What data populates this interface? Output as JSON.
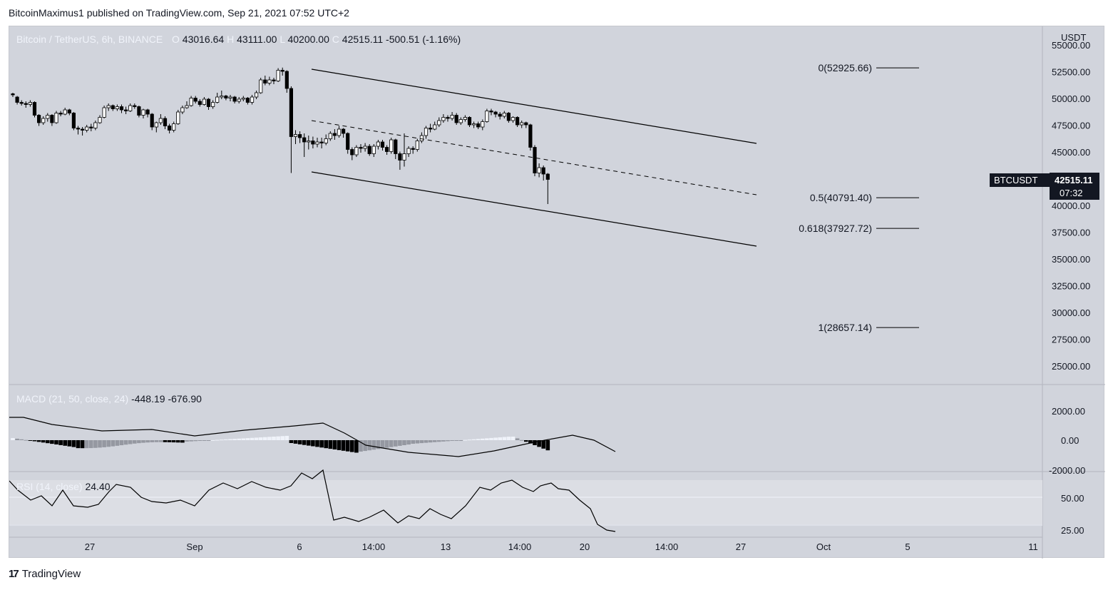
{
  "header": {
    "publish_text": "BitcoinMaximus1 published on TradingView.com, Sep 21, 2021 07:52 UTC+2"
  },
  "footer": {
    "brand": "TradingView",
    "logo_glyph": "17"
  },
  "legend": {
    "symbol": "Bitcoin / TetherUS, 6h, BINANCE",
    "open_prefix": "O",
    "open": "43016.64",
    "high_prefix": "H",
    "high": "43111.00",
    "low_prefix": "L",
    "low": "40200.00",
    "close_prefix": "C",
    "close": "42515.11",
    "change": "-500.51 (-1.16%)"
  },
  "price_axis": {
    "currency": "USDT",
    "ticks": [
      "55000.00",
      "52500.00",
      "50000.00",
      "47500.00",
      "45000.00",
      "40000.00",
      "37500.00",
      "35000.00",
      "32500.00",
      "30000.00",
      "27500.00",
      "25000.00"
    ],
    "last_symbol": "BTCUSDT",
    "last_price": "42515.11",
    "countdown": "07:32"
  },
  "time_axis": {
    "ticks": [
      "27",
      "Sep",
      "6",
      "14:00",
      "13",
      "14:00",
      "20",
      "14:00",
      "27",
      "Oct",
      "5",
      "11"
    ]
  },
  "fib_levels": [
    {
      "label": "0(52925.66)",
      "value": 52925.66
    },
    {
      "label": "0.5(40791.40)",
      "value": 40791.4
    },
    {
      "label": "0.618(37927.72)",
      "value": 37927.72
    },
    {
      "label": "1(28657.14)",
      "value": 28657.14
    }
  ],
  "macd": {
    "label": "MACD (21, 50, close, 24)",
    "value1": "-448.19",
    "value2": "-676.90",
    "ticks": [
      "2000.00",
      "0.00",
      "-2000.00"
    ]
  },
  "rsi": {
    "label": "RSI (14, close)",
    "value": "24.40",
    "ticks": [
      "50.00",
      "25.00"
    ]
  },
  "colors": {
    "background": "#d1d4dc",
    "up": "#ffffff",
    "down": "#000000",
    "line": "#000000",
    "label_bg": "#131722",
    "hist_light": "#f0f3fa",
    "hist_mid": "#9598a1",
    "hist_dark": "#000000"
  },
  "chart_data": {
    "type": "candlestick",
    "title": "Bitcoin / TetherUS, 6h, BINANCE",
    "ylabel": "USDT",
    "ylim": [
      24000,
      55000
    ],
    "candles": [
      [
        50500,
        50400,
        50600,
        50200
      ],
      [
        50200,
        49700,
        50300,
        49500
      ],
      [
        49700,
        49600,
        49900,
        49400
      ],
      [
        49600,
        49500,
        49800,
        49200
      ],
      [
        49500,
        49700,
        49900,
        49300
      ],
      [
        49700,
        48500,
        49800,
        48300
      ],
      [
        48500,
        47800,
        48600,
        47500
      ],
      [
        47800,
        48200,
        48400,
        47600
      ],
      [
        48200,
        48500,
        48700,
        47900
      ],
      [
        48500,
        47800,
        48600,
        47500
      ],
      [
        47800,
        48700,
        48900,
        47700
      ],
      [
        48700,
        48600,
        48900,
        48400
      ],
      [
        48600,
        49000,
        49200,
        48500
      ],
      [
        49000,
        48700,
        49100,
        48500
      ],
      [
        48700,
        47300,
        48800,
        47100
      ],
      [
        47300,
        47200,
        47500,
        46700
      ],
      [
        47200,
        47100,
        47400,
        46600
      ],
      [
        47100,
        47400,
        47600,
        46900
      ],
      [
        47400,
        47300,
        47700,
        47000
      ],
      [
        47300,
        47800,
        48000,
        47100
      ],
      [
        47800,
        48300,
        48500,
        47700
      ],
      [
        48300,
        49200,
        49400,
        48200
      ],
      [
        49200,
        49400,
        49600,
        48900
      ],
      [
        49400,
        49100,
        49500,
        48900
      ],
      [
        49100,
        49300,
        49500,
        48900
      ],
      [
        49300,
        49000,
        49500,
        48700
      ],
      [
        49000,
        48900,
        49300,
        48600
      ],
      [
        48900,
        49400,
        49600,
        48800
      ],
      [
        49400,
        49300,
        49600,
        49100
      ],
      [
        49300,
        48500,
        49400,
        48300
      ],
      [
        48500,
        49000,
        49100,
        48200
      ],
      [
        49000,
        48600,
        49100,
        48300
      ],
      [
        48600,
        47400,
        48700,
        47100
      ],
      [
        47400,
        47800,
        47900,
        46900
      ],
      [
        47800,
        48200,
        48600,
        47600
      ],
      [
        48200,
        47500,
        48400,
        47200
      ],
      [
        47500,
        47100,
        47700,
        46800
      ],
      [
        47100,
        47700,
        47900,
        46900
      ],
      [
        47700,
        48800,
        49000,
        47600
      ],
      [
        48800,
        49200,
        49400,
        48600
      ],
      [
        49200,
        49400,
        49800,
        49100
      ],
      [
        49400,
        50100,
        50300,
        49300
      ],
      [
        50100,
        49800,
        50300,
        49600
      ],
      [
        49800,
        49500,
        50000,
        49300
      ],
      [
        49500,
        50000,
        50200,
        49400
      ],
      [
        50000,
        49300,
        50100,
        49000
      ],
      [
        49300,
        49700,
        49900,
        49100
      ],
      [
        49700,
        50200,
        50600,
        49600
      ],
      [
        50200,
        50300,
        50800,
        50000
      ],
      [
        50300,
        50100,
        50400,
        49900
      ],
      [
        50100,
        50200,
        50400,
        49800
      ],
      [
        50200,
        49800,
        50300,
        49600
      ],
      [
        49800,
        50000,
        50200,
        49600
      ],
      [
        50000,
        50100,
        50300,
        49800
      ],
      [
        50100,
        49700,
        50200,
        49500
      ],
      [
        49700,
        50200,
        50400,
        49500
      ],
      [
        50200,
        50600,
        50800,
        50000
      ],
      [
        50600,
        51800,
        52000,
        50500
      ],
      [
        51800,
        51500,
        52200,
        51300
      ],
      [
        51500,
        51800,
        52100,
        51300
      ],
      [
        51800,
        51700,
        52000,
        51400
      ],
      [
        51700,
        52700,
        52900,
        51600
      ],
      [
        52700,
        52600,
        52950,
        52200
      ],
      [
        52600,
        51000,
        52700,
        50600
      ],
      [
        51000,
        46500,
        51200,
        43100
      ],
      [
        46500,
        46700,
        47100,
        45800
      ],
      [
        46700,
        46400,
        47000,
        45900
      ],
      [
        46400,
        46000,
        46800,
        44600
      ],
      [
        46000,
        46100,
        46600,
        45300
      ],
      [
        46100,
        45800,
        46500,
        45400
      ],
      [
        45800,
        46000,
        46400,
        45500
      ],
      [
        46000,
        45900,
        46400,
        45400
      ],
      [
        45900,
        46300,
        46700,
        45700
      ],
      [
        46300,
        46800,
        47000,
        46100
      ],
      [
        46800,
        46600,
        47200,
        46200
      ],
      [
        46600,
        47200,
        47500,
        46400
      ],
      [
        47200,
        46800,
        47300,
        46400
      ],
      [
        46800,
        45300,
        46900,
        44900
      ],
      [
        45300,
        44800,
        45500,
        44300
      ],
      [
        44800,
        45500,
        45700,
        44600
      ],
      [
        45500,
        45400,
        45800,
        45000
      ],
      [
        45400,
        45600,
        45900,
        45100
      ],
      [
        45600,
        44900,
        45800,
        44700
      ],
      [
        44900,
        45600,
        45800,
        44600
      ],
      [
        45600,
        46000,
        46200,
        45300
      ],
      [
        46000,
        45500,
        46200,
        45200
      ],
      [
        45500,
        45100,
        45700,
        44800
      ],
      [
        45100,
        46200,
        46400,
        44900
      ],
      [
        46200,
        44900,
        46300,
        44400
      ],
      [
        44900,
        44300,
        45100,
        43400
      ],
      [
        44300,
        44900,
        46800,
        43700
      ],
      [
        44900,
        45400,
        45600,
        44600
      ],
      [
        45400,
        45300,
        45600,
        44900
      ],
      [
        45300,
        46100,
        46300,
        45100
      ],
      [
        46100,
        46600,
        46900,
        45900
      ],
      [
        46600,
        47300,
        47500,
        46300
      ],
      [
        47300,
        47200,
        47700,
        46900
      ],
      [
        47200,
        47600,
        47900,
        47100
      ],
      [
        47600,
        48000,
        48300,
        47400
      ],
      [
        48000,
        48300,
        48600,
        47800
      ],
      [
        48300,
        48200,
        48500,
        47900
      ],
      [
        48200,
        48500,
        48800,
        48000
      ],
      [
        48500,
        47800,
        48700,
        47600
      ],
      [
        47800,
        48100,
        48300,
        47600
      ],
      [
        48100,
        48300,
        48500,
        47900
      ],
      [
        48300,
        47600,
        48400,
        47400
      ],
      [
        47600,
        47700,
        47900,
        47300
      ],
      [
        47700,
        47400,
        47900,
        47200
      ],
      [
        47400,
        47900,
        48100,
        47100
      ],
      [
        47900,
        48900,
        49100,
        47800
      ],
      [
        48900,
        48800,
        49100,
        48500
      ],
      [
        48800,
        48600,
        48900,
        48300
      ],
      [
        48600,
        48400,
        48800,
        48100
      ],
      [
        48400,
        48700,
        48900,
        48200
      ],
      [
        48700,
        48000,
        48800,
        47800
      ],
      [
        48000,
        48300,
        48400,
        47800
      ],
      [
        48300,
        47600,
        48400,
        47400
      ],
      [
        47600,
        47800,
        48000,
        47300
      ],
      [
        47800,
        47600,
        47900,
        47300
      ],
      [
        47600,
        45500,
        47700,
        45200
      ],
      [
        45500,
        43100,
        45700,
        42800
      ],
      [
        43100,
        43600,
        44000,
        42700
      ],
      [
        43600,
        43000,
        43800,
        42400
      ],
      [
        43000,
        42500,
        43100,
        40200
      ]
    ],
    "channel": {
      "upper": [
        [
          52925,
          53000
        ],
        [
          46000,
          46000
        ]
      ],
      "mid": [
        [
          48000
        ],
        [
          41200
        ]
      ]
    }
  }
}
